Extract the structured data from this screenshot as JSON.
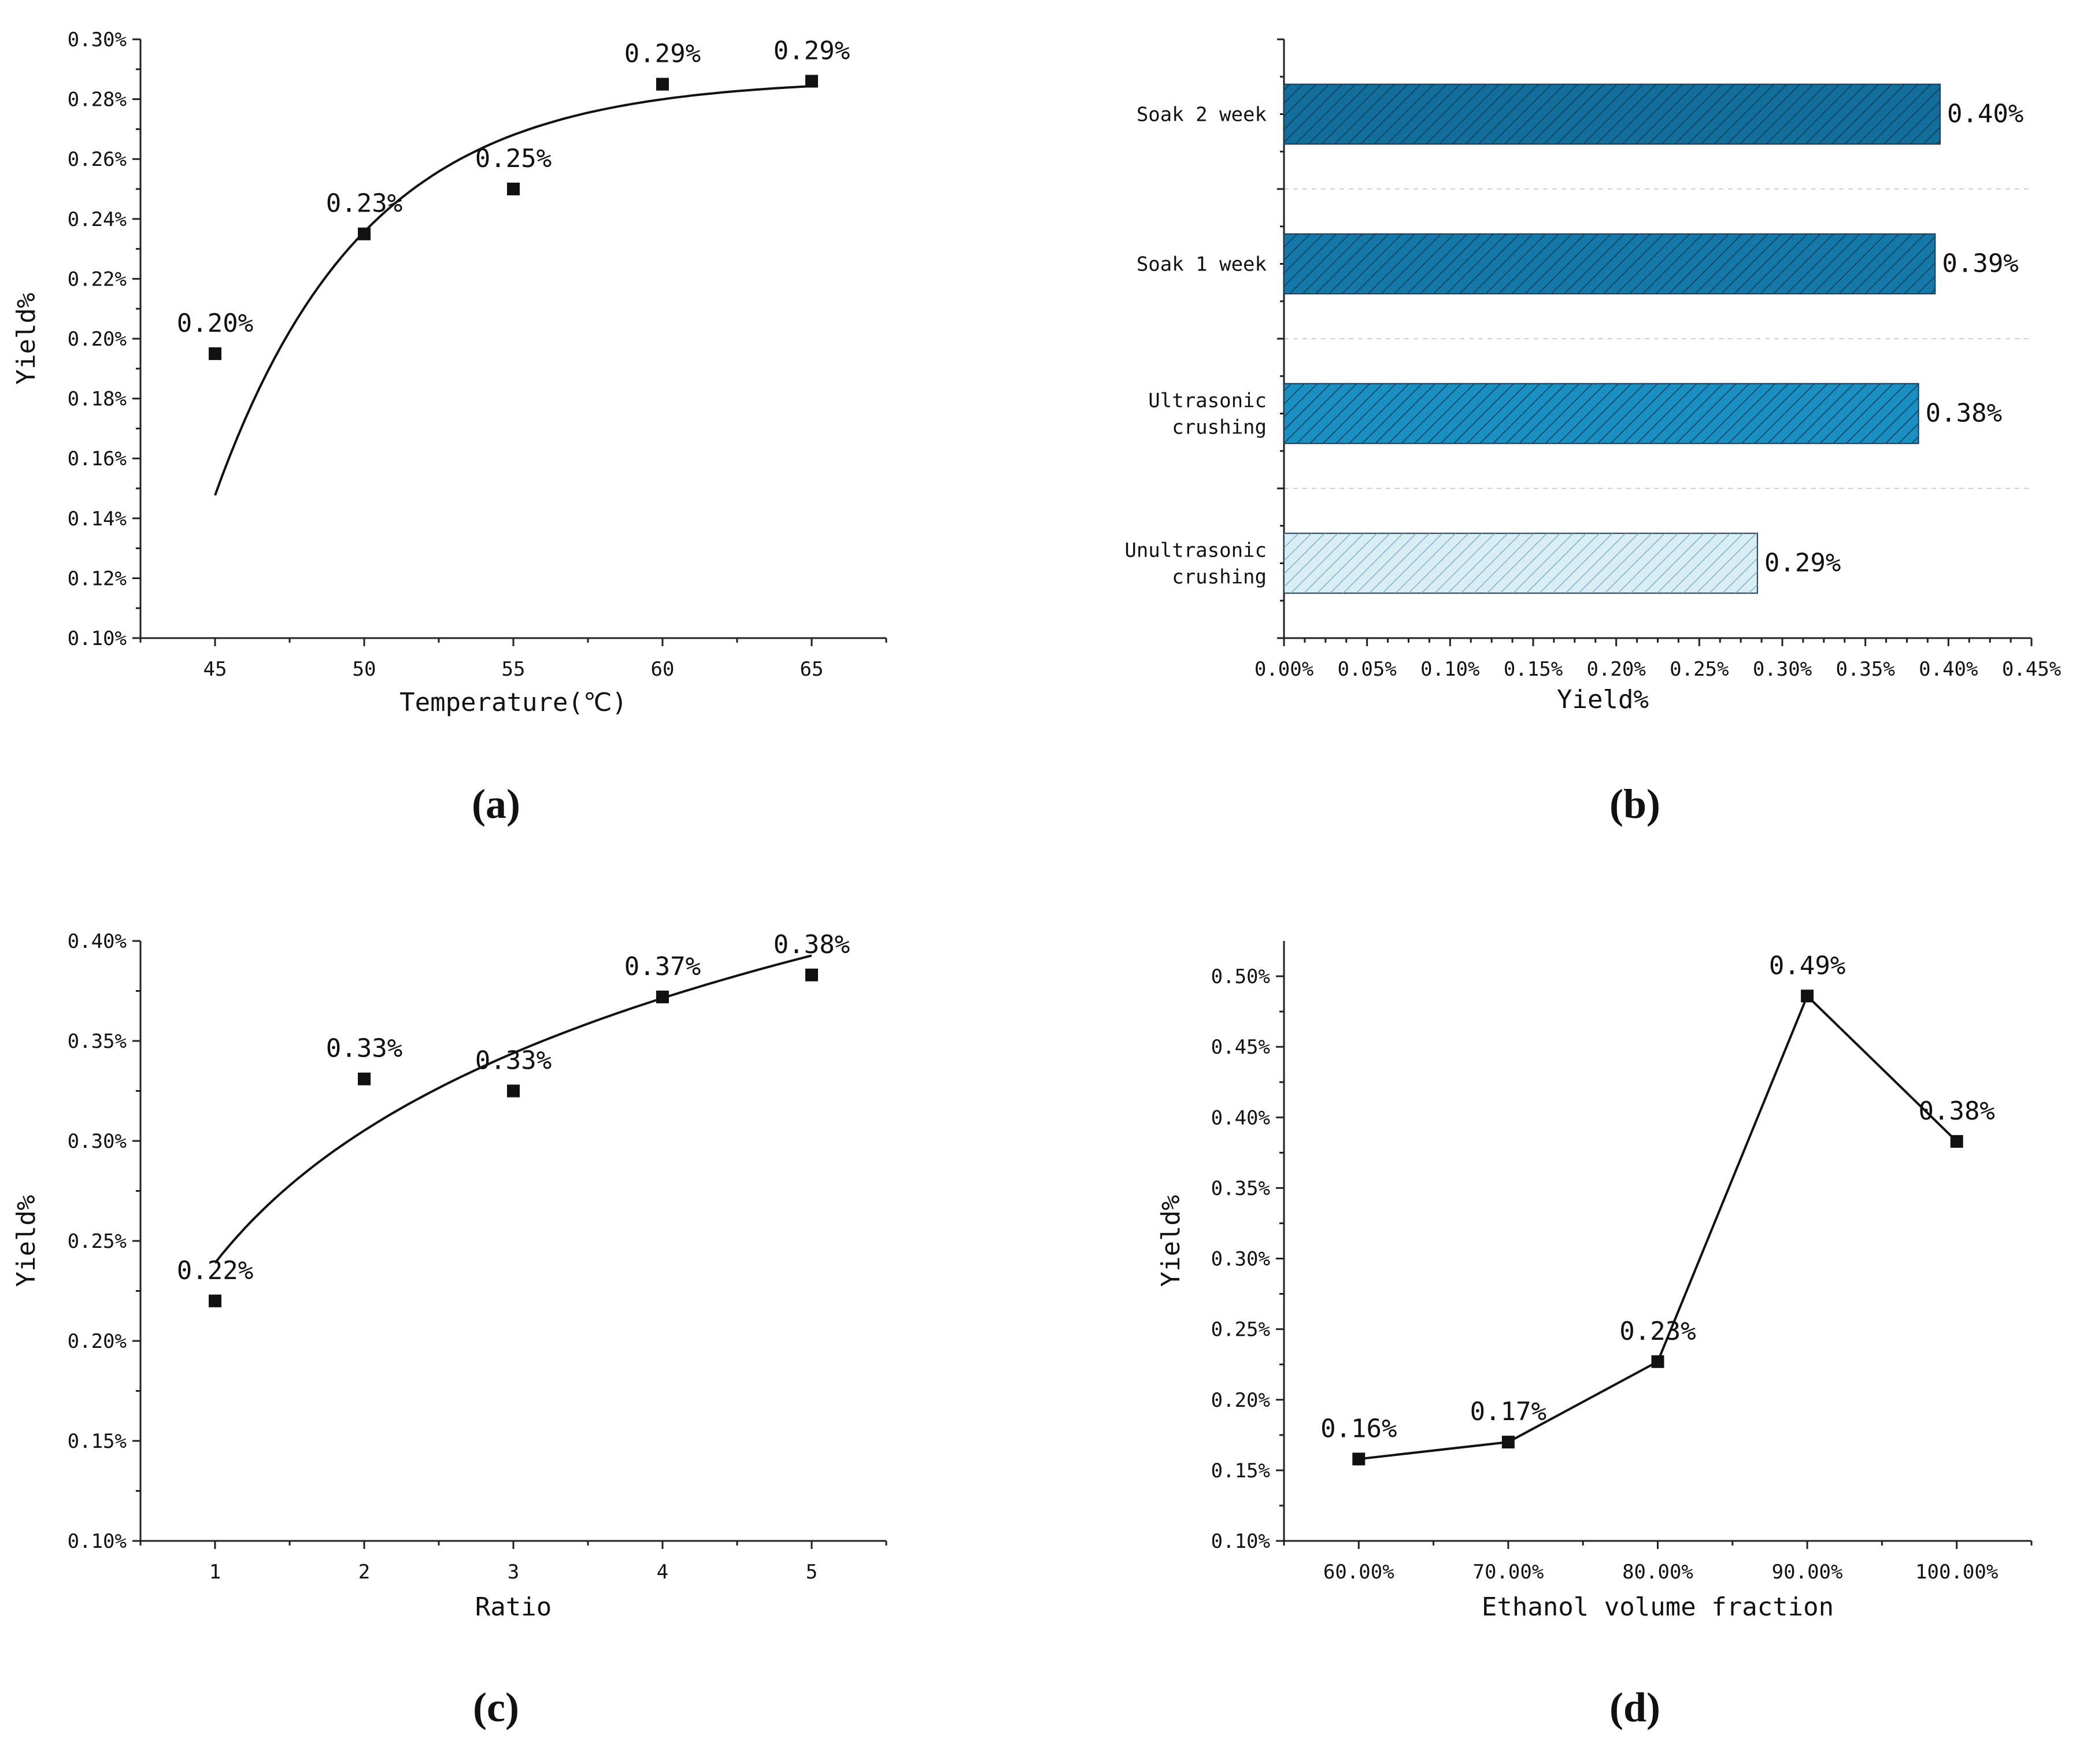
{
  "chart_data": [
    {
      "type": "scatter",
      "panel_caption": "(a)",
      "xlabel": "Temperature(℃)",
      "ylabel": "Yield%",
      "x": [
        45,
        50,
        55,
        60,
        65
      ],
      "y": [
        0.195,
        0.235,
        0.25,
        0.285,
        0.286
      ],
      "point_labels": [
        "0.20%",
        "0.23%",
        "0.25%",
        "0.29%",
        "0.29%"
      ],
      "xticks": [
        45,
        50,
        55,
        60,
        65
      ],
      "xtick_labels": [
        "45",
        "50",
        "55",
        "60",
        "65"
      ],
      "xlim": [
        42.5,
        67.5
      ],
      "ylim": [
        0.1,
        0.3
      ],
      "yticks": [
        0.1,
        0.12,
        0.14,
        0.16,
        0.18,
        0.2,
        0.22,
        0.24,
        0.26,
        0.28,
        0.3
      ],
      "ytick_labels": [
        "0.10%",
        "0.12%",
        "0.14%",
        "0.16%",
        "0.18%",
        "0.20%",
        "0.22%",
        "0.24%",
        "0.26%",
        "0.28%",
        "0.30%"
      ],
      "fit": {
        "kind": "exponential-rise",
        "a": 0.2869,
        "b": 0.1392,
        "k": 0.2,
        "x0": 45,
        "x_range": [
          45,
          65
        ]
      }
    },
    {
      "type": "bar",
      "orientation": "horizontal",
      "panel_caption": "(b)",
      "xlabel": "Yield%",
      "ylabel": "",
      "categories": [
        [
          "Unultrasonic",
          "crushing"
        ],
        [
          "Ultrasonic",
          "crushing"
        ],
        [
          "Soak 1 week"
        ],
        [
          "Soak 2 week"
        ]
      ],
      "values": [
        0.285,
        0.382,
        0.392,
        0.395
      ],
      "value_labels": [
        "0.29%",
        "0.38%",
        "0.39%",
        "0.40%"
      ],
      "bar_colors": [
        "#d9edf4",
        "#1a8fc2",
        "#1478a8",
        "#126f9c"
      ],
      "xlim": [
        0,
        0.45
      ],
      "xticks": [
        0,
        0.05,
        0.1,
        0.15,
        0.2,
        0.25,
        0.3,
        0.35,
        0.4,
        0.45
      ],
      "xtick_labels": [
        "0.00%",
        "0.05%",
        "0.10%",
        "0.15%",
        "0.20%",
        "0.25%",
        "0.30%",
        "0.35%",
        "0.40%",
        "0.45%"
      ],
      "grid": "horizontal dashed"
    },
    {
      "type": "scatter",
      "panel_caption": "(c)",
      "xlabel": "Ratio",
      "ylabel": "Yield%",
      "x": [
        1,
        2,
        3,
        4,
        5
      ],
      "y": [
        0.22,
        0.331,
        0.325,
        0.372,
        0.383
      ],
      "point_labels": [
        "0.22%",
        "0.33%",
        "0.33%",
        "0.37%",
        "0.38%"
      ],
      "xticks": [
        1,
        2,
        3,
        4,
        5
      ],
      "xtick_labels": [
        "1",
        "2",
        "3",
        "4",
        "5"
      ],
      "xlim": [
        0.5,
        5.5
      ],
      "ylim": [
        0.1,
        0.4
      ],
      "yticks": [
        0.1,
        0.15,
        0.2,
        0.25,
        0.3,
        0.35,
        0.4
      ],
      "ytick_labels": [
        "0.10%",
        "0.15%",
        "0.20%",
        "0.25%",
        "0.30%",
        "0.35%",
        "0.40%"
      ],
      "fit": {
        "kind": "logarithmic",
        "a": 0.239,
        "b": 0.0955,
        "x_range": [
          1,
          5
        ]
      }
    },
    {
      "type": "line",
      "panel_caption": "(d)",
      "xlabel": "Ethanol volume fraction",
      "ylabel": "Yield%",
      "x": [
        60,
        70,
        80,
        90,
        100
      ],
      "y": [
        0.158,
        0.17,
        0.227,
        0.486,
        0.383
      ],
      "point_labels": [
        "0.16%",
        "0.17%",
        "0.23%",
        "0.49%",
        "0.38%"
      ],
      "xticks": [
        60,
        70,
        80,
        90,
        100
      ],
      "xtick_labels": [
        "60.00%",
        "70.00%",
        "80.00%",
        "90.00%",
        "100.00%"
      ],
      "xlim": [
        55,
        105
      ],
      "ylim": [
        0.1,
        0.525
      ],
      "yticks": [
        0.1,
        0.15,
        0.2,
        0.25,
        0.3,
        0.35,
        0.4,
        0.45,
        0.5
      ],
      "ytick_labels": [
        "0.10%",
        "0.15%",
        "0.20%",
        "0.25%",
        "0.30%",
        "0.35%",
        "0.40%",
        "0.45%",
        "0.50%"
      ]
    }
  ]
}
